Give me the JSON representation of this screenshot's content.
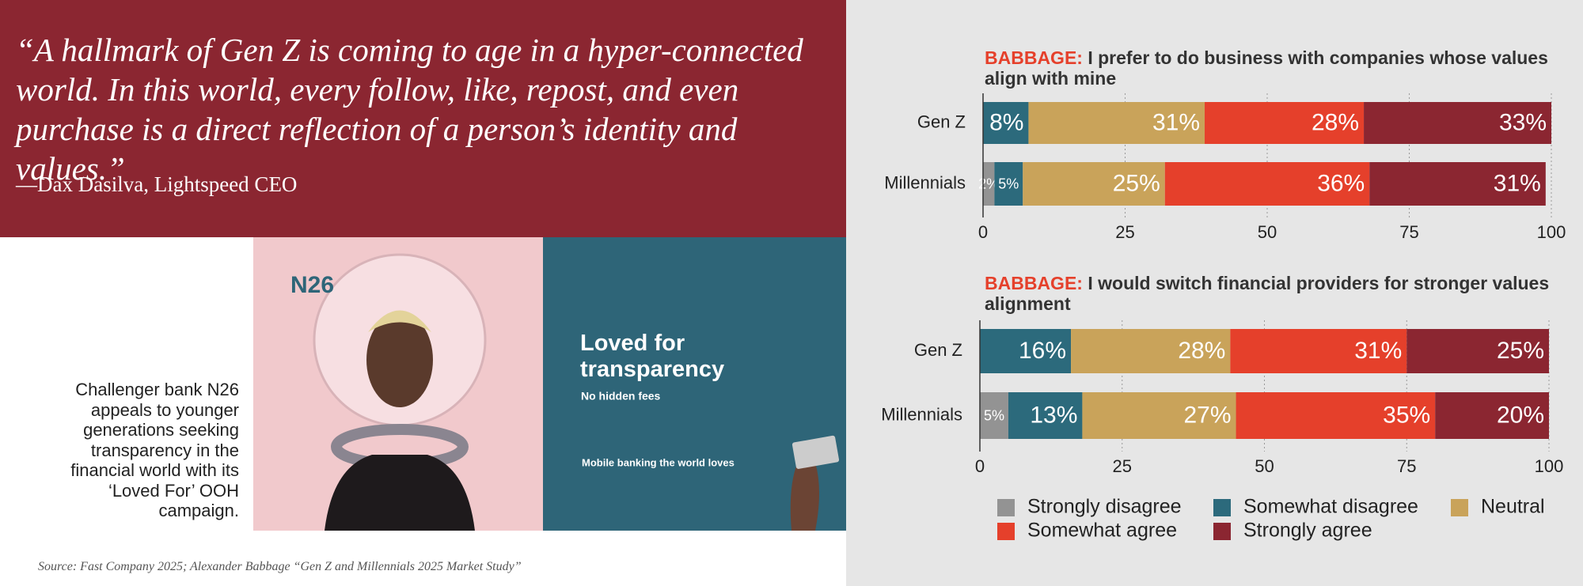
{
  "quote": {
    "text": "“A hallmark of Gen Z is coming to age in a hyper-connected world. In this world, every follow, like, repost, and even purchase is a direct reflection of a person’s identity and values.”",
    "attribution": "—Dax Dasilva, Lightspeed CEO"
  },
  "caption": "Challenger bank N26 appeals to younger generations seeking transparency in the financial world with its ‘Loved For’ OOH campaign.",
  "ad": {
    "logo": "N26",
    "headline": "Loved for transparency",
    "subhead": "No hidden fees",
    "tagline": "Mobile banking the world loves"
  },
  "source": "Source: Fast Company 2025; Alexander Babbage “Gen Z and Millennials 2025 Market Study”",
  "chart_data": [
    {
      "type": "stacked-bar-horizontal",
      "title_prefix": "BABBAGE:",
      "title": "I prefer to do business with companies whose values align with mine",
      "categories": [
        "Gen Z",
        "Millennials"
      ],
      "xlim": [
        0,
        100
      ],
      "xticks": [
        0,
        25,
        50,
        75,
        100
      ],
      "grid": true,
      "series": [
        {
          "color": "#939393",
          "values": [
            null,
            2
          ],
          "value_labels": [
            null,
            "2%"
          ]
        },
        {
          "color": "#2c6a7c",
          "values": [
            8,
            5
          ],
          "value_labels": [
            "8%",
            "5%"
          ]
        },
        {
          "color": "#c9a35a",
          "values": [
            31,
            25
          ],
          "value_labels": [
            "31%",
            "25%"
          ]
        },
        {
          "color": "#e5402b",
          "values": [
            28,
            36
          ],
          "value_labels": [
            "28%",
            "36%"
          ]
        },
        {
          "color": "#8b2631",
          "values": [
            33,
            31
          ],
          "value_labels": [
            "33%",
            "31%"
          ]
        }
      ]
    },
    {
      "type": "stacked-bar-horizontal",
      "title_prefix": "BABBAGE:",
      "title": "I would switch financial providers for stronger values alignment",
      "categories": [
        "Gen Z",
        "Millennials"
      ],
      "xlim": [
        0,
        100
      ],
      "xticks": [
        0,
        25,
        50,
        75,
        100
      ],
      "grid": true,
      "legend": "bottom",
      "series": [
        {
          "name": "Strongly disagree",
          "color": "#939393",
          "values": [
            null,
            5
          ],
          "value_labels": [
            null,
            "5%"
          ]
        },
        {
          "name": "Somewhat disagree",
          "color": "#2c6a7c",
          "values": [
            16,
            13
          ],
          "value_labels": [
            "16%",
            "13%"
          ]
        },
        {
          "name": "Neutral",
          "color": "#c9a35a",
          "values": [
            28,
            27
          ],
          "value_labels": [
            "28%",
            "27%"
          ]
        },
        {
          "name": "Somewhat agree",
          "color": "#e5402b",
          "values": [
            31,
            35
          ],
          "value_labels": [
            "31%",
            "35%"
          ]
        },
        {
          "name": "Strongly agree",
          "color": "#8b2631",
          "values": [
            25,
            20
          ],
          "value_labels": [
            "25%",
            "20%"
          ]
        }
      ]
    }
  ]
}
